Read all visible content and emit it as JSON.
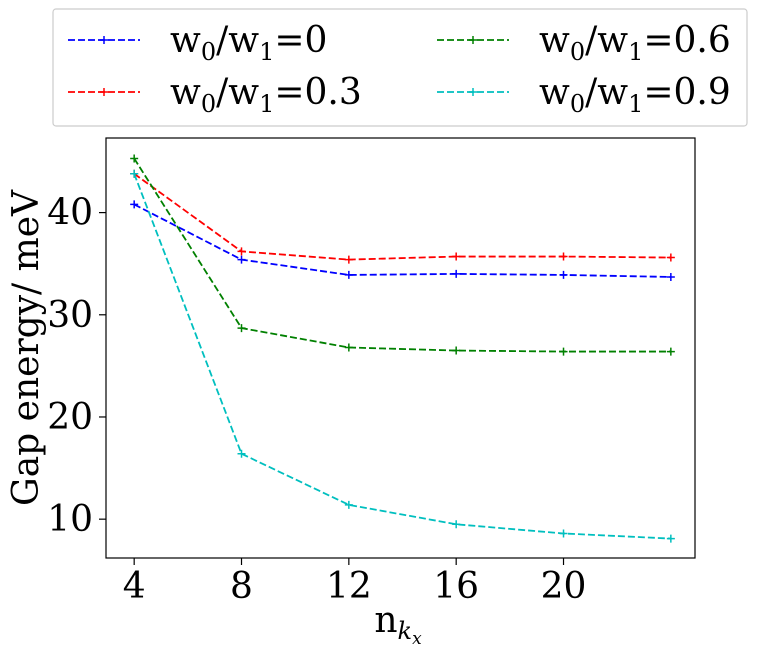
{
  "chart_data": {
    "type": "line",
    "title": "",
    "xlabel": "n",
    "xlabel_sub": "k",
    "xlabel_subsub": "x",
    "ylabel": "Gap energy/ meV",
    "x": [
      4,
      8,
      12,
      16,
      20,
      24
    ],
    "xticks": [
      4,
      8,
      12,
      16,
      20
    ],
    "xlim": [
      2.95,
      24.9
    ],
    "yticks": [
      10,
      20,
      30,
      40
    ],
    "ylim": [
      6.2,
      47.3
    ],
    "grid": false,
    "legend_position": "top, outside plot, 2 columns",
    "series": [
      {
        "name": "w0/w1=0",
        "label_parts": [
          "w",
          "0",
          "/w",
          "1",
          "=0"
        ],
        "color": "#0000ff",
        "values": [
          40.8,
          35.4,
          33.9,
          34.0,
          33.9,
          33.7
        ]
      },
      {
        "name": "w0/w1=0.3",
        "label_parts": [
          "w",
          "0",
          "/w",
          "1",
          "=0.3"
        ],
        "color": "#ff0000",
        "values": [
          43.8,
          36.2,
          35.4,
          35.7,
          35.7,
          35.6
        ]
      },
      {
        "name": "w0/w1=0.6",
        "label_parts": [
          "w",
          "0",
          "/w",
          "1",
          "=0.6"
        ],
        "color": "#008000",
        "values": [
          45.3,
          28.7,
          26.8,
          26.5,
          26.4,
          26.4
        ]
      },
      {
        "name": "w0/w1=0.9",
        "label_parts": [
          "w",
          "0",
          "/w",
          "1",
          "=0.9"
        ],
        "color": "#00bfbf",
        "values": [
          43.8,
          16.4,
          11.4,
          9.5,
          8.6,
          8.1
        ]
      }
    ]
  }
}
